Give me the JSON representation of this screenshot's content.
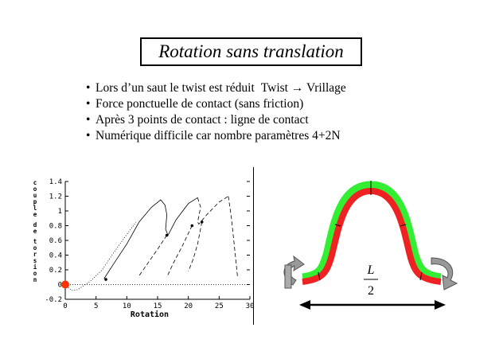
{
  "slide": {
    "title": "Rotation sans translation",
    "bullets": [
      {
        "text": "Lors d’un saut le twist est réduit",
        "extra": "Twist → Vrillage"
      },
      {
        "text": "Force ponctuelle de contact (sans friction)"
      },
      {
        "text": "Après 3 points de contact : ligne de contact"
      },
      {
        "text": "Numérique difficile car nombre paramètres 4+2N"
      }
    ],
    "bullet_glyph": "•"
  },
  "chart_data": {
    "type": "line",
    "xlabel": "Rotation",
    "ylabel": "couple de torsion",
    "xlim": [
      0,
      30
    ],
    "ylim": [
      -0.2,
      1.4
    ],
    "xticks": [
      "0",
      "5",
      "10",
      "15",
      "20",
      "25",
      "30"
    ],
    "yticks": [
      "-0.2",
      "0",
      "0.2",
      "0.4",
      "0.6",
      "0.8",
      "1",
      "1.2",
      "1.4"
    ],
    "marker": {
      "x": 0,
      "y": 0,
      "color": "#ff3300"
    },
    "curves": [
      {
        "style": "dotted",
        "points": [
          [
            0.2,
            -0.02
          ],
          [
            1,
            -0.08
          ],
          [
            2,
            -0.07
          ],
          [
            4,
            0.04
          ],
          [
            6,
            0.2
          ],
          [
            8,
            0.45
          ],
          [
            10,
            0.68
          ],
          [
            11.5,
            0.85
          ]
        ]
      },
      {
        "style": "solid",
        "points": [
          [
            6.3,
            0.08
          ],
          [
            8,
            0.3
          ],
          [
            10,
            0.55
          ],
          [
            12,
            0.85
          ],
          [
            14,
            1.05
          ],
          [
            15.5,
            1.15
          ],
          [
            16.2,
            1.08
          ],
          [
            16.5,
            0.95
          ]
        ]
      },
      {
        "style": "solid",
        "points": [
          [
            16.5,
            0.95
          ],
          [
            16.3,
            0.75
          ],
          [
            16.7,
            0.67
          ],
          [
            18,
            0.88
          ],
          [
            20,
            1.1
          ],
          [
            21.5,
            1.18
          ]
        ]
      },
      {
        "style": "dashed",
        "points": [
          [
            21.5,
            1.18
          ],
          [
            22,
            1.05
          ],
          [
            21.5,
            0.85
          ],
          [
            21.7,
            0.82
          ],
          [
            23,
            0.95
          ],
          [
            25,
            1.12
          ],
          [
            26.5,
            1.2
          ]
        ]
      },
      {
        "style": "dashed",
        "points": [
          [
            26.5,
            1.2
          ],
          [
            27,
            0.9
          ],
          [
            27.5,
            0.5
          ],
          [
            28,
            0.1
          ]
        ]
      },
      {
        "style": "dashed",
        "points": [
          [
            16.5,
            0.67
          ],
          [
            15,
            0.48
          ],
          [
            13.5,
            0.3
          ],
          [
            12,
            0.12
          ]
        ]
      },
      {
        "style": "dashed",
        "points": [
          [
            20.6,
            0.8
          ],
          [
            19,
            0.52
          ],
          [
            17.5,
            0.28
          ],
          [
            16.5,
            0.1
          ]
        ]
      },
      {
        "style": "dashed",
        "points": [
          [
            22.2,
            0.85
          ],
          [
            21.5,
            0.55
          ],
          [
            20.8,
            0.35
          ],
          [
            20,
            0.18
          ]
        ]
      },
      {
        "style": "dotted",
        "points": [
          [
            0,
            0
          ],
          [
            30,
            0
          ]
        ]
      }
    ],
    "dots": [
      [
        6.6,
        0.07
      ],
      [
        16.5,
        0.67
      ],
      [
        20.6,
        0.8
      ],
      [
        22.2,
        0.85
      ]
    ]
  },
  "diagram": {
    "fraction_num": "L",
    "fraction_den": "2",
    "colors": {
      "outer": "#33ee33",
      "inner": "#ee2222",
      "arrow": "#999999"
    }
  }
}
